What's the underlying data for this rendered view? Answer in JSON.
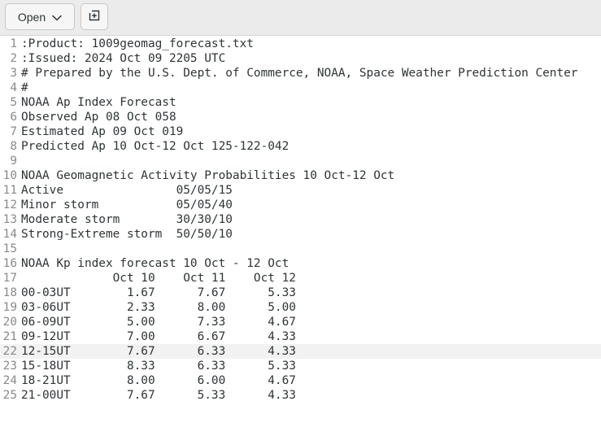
{
  "toolbar": {
    "open_label": "Open",
    "open_chevron_icon": "chevron-down-icon",
    "new_tab_icon": "new-tab-icon"
  },
  "editor": {
    "current_line": 22,
    "lines": [
      {
        "num": "1",
        "text": ":Product: 1009geomag_forecast.txt"
      },
      {
        "num": "2",
        "text": ":Issued: 2024 Oct 09 2205 UTC"
      },
      {
        "num": "3",
        "text": "# Prepared by the U.S. Dept. of Commerce, NOAA, Space Weather Prediction Center"
      },
      {
        "num": "4",
        "text": "#"
      },
      {
        "num": "5",
        "text": "NOAA Ap Index Forecast"
      },
      {
        "num": "6",
        "text": "Observed Ap 08 Oct 058"
      },
      {
        "num": "7",
        "text": "Estimated Ap 09 Oct 019"
      },
      {
        "num": "8",
        "text": "Predicted Ap 10 Oct-12 Oct 125-122-042"
      },
      {
        "num": "9",
        "text": ""
      },
      {
        "num": "10",
        "text": "NOAA Geomagnetic Activity Probabilities 10 Oct-12 Oct"
      },
      {
        "num": "11",
        "text": "Active                05/05/15"
      },
      {
        "num": "12",
        "text": "Minor storm           05/05/40"
      },
      {
        "num": "13",
        "text": "Moderate storm        30/30/10"
      },
      {
        "num": "14",
        "text": "Strong-Extreme storm  50/50/10"
      },
      {
        "num": "15",
        "text": ""
      },
      {
        "num": "16",
        "text": "NOAA Kp index forecast 10 Oct - 12 Oct"
      },
      {
        "num": "17",
        "text": "             Oct 10    Oct 11    Oct 12"
      },
      {
        "num": "18",
        "text": "00-03UT        1.67      7.67      5.33"
      },
      {
        "num": "19",
        "text": "03-06UT        2.33      8.00      5.00"
      },
      {
        "num": "20",
        "text": "06-09UT        5.00      7.33      4.67"
      },
      {
        "num": "21",
        "text": "09-12UT        7.00      6.67      4.33"
      },
      {
        "num": "22",
        "text": "12-15UT        7.67      6.33      4.33"
      },
      {
        "num": "23",
        "text": "15-18UT        8.33      6.33      5.33"
      },
      {
        "num": "24",
        "text": "18-21UT        8.00      6.00      4.67"
      },
      {
        "num": "25",
        "text": "21-00UT        7.67      5.33      4.33"
      }
    ]
  }
}
